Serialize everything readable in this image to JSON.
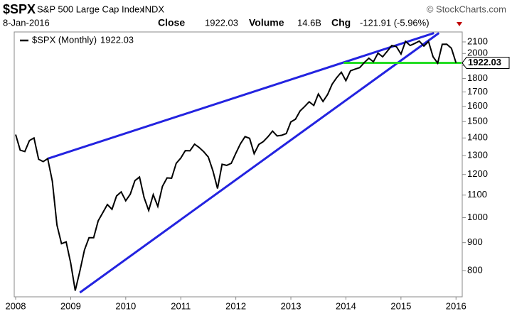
{
  "header": {
    "symbol": "$SPX",
    "name": "S&P 500 Large Cap Index",
    "exchange": "INDX",
    "source": "© StockCharts.com",
    "date": "8-Jan-2016",
    "close_label": "Close",
    "close": "1922.03",
    "volume_label": "Volume",
    "volume": "14.6B",
    "chg_label": "Chg",
    "chg": "-121.91 (-5.96%)"
  },
  "chart_data": {
    "type": "line",
    "log_scale": true,
    "grid": false,
    "x": [
      2008,
      2008.083,
      2008.167,
      2008.25,
      2008.333,
      2008.417,
      2008.5,
      2008.583,
      2008.667,
      2008.75,
      2008.833,
      2008.917,
      2009,
      2009.083,
      2009.167,
      2009.25,
      2009.333,
      2009.417,
      2009.5,
      2009.583,
      2009.667,
      2009.75,
      2009.833,
      2009.917,
      2010,
      2010.083,
      2010.167,
      2010.25,
      2010.333,
      2010.417,
      2010.5,
      2010.583,
      2010.667,
      2010.75,
      2010.833,
      2010.917,
      2011,
      2011.083,
      2011.167,
      2011.25,
      2011.333,
      2011.417,
      2011.5,
      2011.583,
      2011.667,
      2011.75,
      2011.833,
      2011.917,
      2012,
      2012.083,
      2012.167,
      2012.25,
      2012.333,
      2012.417,
      2012.5,
      2012.583,
      2012.667,
      2012.75,
      2012.833,
      2012.917,
      2013,
      2013.083,
      2013.167,
      2013.25,
      2013.333,
      2013.417,
      2013.5,
      2013.583,
      2013.667,
      2013.75,
      2013.833,
      2013.917,
      2014,
      2014.083,
      2014.167,
      2014.25,
      2014.333,
      2014.417,
      2014.5,
      2014.583,
      2014.667,
      2014.75,
      2014.833,
      2014.917,
      2015,
      2015.083,
      2015.167,
      2015.25,
      2015.333,
      2015.417,
      2015.5,
      2015.583,
      2015.667,
      2015.75,
      2015.833,
      2015.917,
      2016
    ],
    "series": [
      {
        "name": "$SPX (Monthly)",
        "color": "#000000",
        "values": [
          1420,
          1330,
          1322,
          1385,
          1400,
          1280,
          1267,
          1283,
          1166,
          969,
          896,
          903,
          826,
          735,
          798,
          873,
          919,
          919,
          987,
          1021,
          1057,
          1036,
          1096,
          1115,
          1074,
          1104,
          1169,
          1187,
          1089,
          1031,
          1102,
          1049,
          1141,
          1183,
          1181,
          1258,
          1286,
          1327,
          1326,
          1364,
          1345,
          1321,
          1292,
          1219,
          1131,
          1253,
          1247,
          1258,
          1312,
          1366,
          1408,
          1398,
          1310,
          1362,
          1379,
          1407,
          1441,
          1412,
          1416,
          1426,
          1498,
          1515,
          1569,
          1598,
          1631,
          1606,
          1686,
          1633,
          1682,
          1757,
          1806,
          1848,
          1783,
          1859,
          1872,
          1884,
          1924,
          1960,
          1931,
          2003,
          1972,
          2018,
          2068,
          2059,
          1995,
          2105,
          2068,
          2086,
          2107,
          2063,
          2104,
          1972,
          1920,
          2079,
          2080,
          2044,
          1922.03
        ]
      }
    ],
    "trendlines": [
      {
        "color": "#2323e0",
        "x": [
          2008.583,
          2015.6
        ],
        "y": [
          1283,
          2180
        ]
      },
      {
        "color": "#2323e0",
        "x": [
          2009.167,
          2015.69
        ],
        "y": [
          729,
          2180
        ]
      },
      {
        "color": "#22dd22",
        "x": [
          2013.96,
          2016.1
        ],
        "y": [
          1922,
          1922
        ]
      }
    ],
    "xlim": [
      2008,
      2016.1
    ],
    "xticks": [
      2008,
      2009,
      2010,
      2011,
      2012,
      2013,
      2014,
      2015,
      2016
    ],
    "ylim": [
      716,
      2190
    ],
    "yticks": [
      800,
      900,
      1000,
      1100,
      1200,
      1300,
      1400,
      1500,
      1600,
      1700,
      1800,
      1900,
      2000,
      2100
    ]
  }
}
